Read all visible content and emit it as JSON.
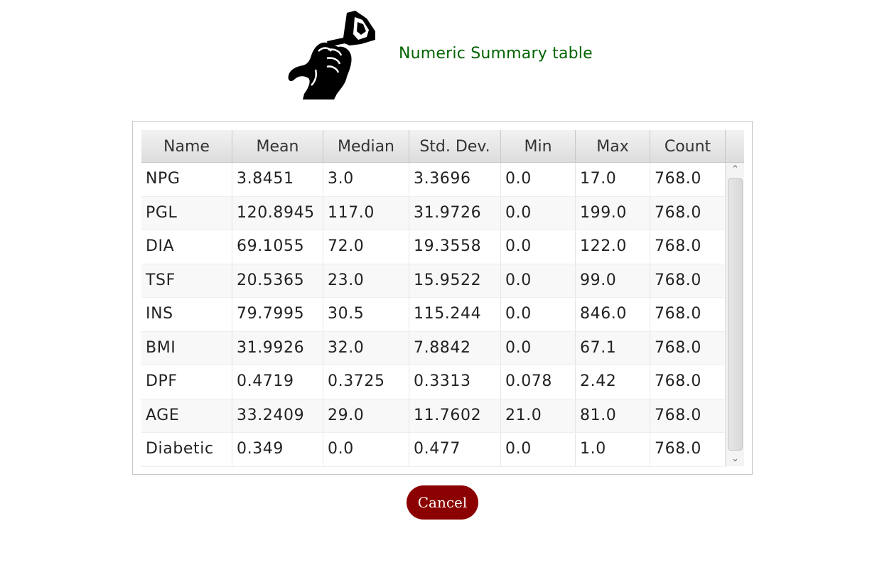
{
  "header": {
    "title": "Numeric Summary table",
    "logo_icon": "hand-holding-glucose-meter-icon"
  },
  "table": {
    "columns": [
      "Name",
      "Mean",
      "Median",
      "Std. Dev.",
      "Min",
      "Max",
      "Count"
    ],
    "rows": [
      [
        "NPG",
        "3.8451",
        "3.0",
        "3.3696",
        "0.0",
        "17.0",
        "768.0"
      ],
      [
        "PGL",
        "120.8945",
        "117.0",
        "31.9726",
        "0.0",
        "199.0",
        "768.0"
      ],
      [
        "DIA",
        "69.1055",
        "72.0",
        "19.3558",
        "0.0",
        "122.0",
        "768.0"
      ],
      [
        "TSF",
        "20.5365",
        "23.0",
        "15.9522",
        "0.0",
        "99.0",
        "768.0"
      ],
      [
        "INS",
        "79.7995",
        "30.5",
        "115.244",
        "0.0",
        "846.0",
        "768.0"
      ],
      [
        "BMI",
        "31.9926",
        "32.0",
        "7.8842",
        "0.0",
        "67.1",
        "768.0"
      ],
      [
        "DPF",
        "0.4719",
        "0.3725",
        "0.3313",
        "0.078",
        "2.42",
        "768.0"
      ],
      [
        "AGE",
        "33.2409",
        "29.0",
        "11.7602",
        "21.0",
        "81.0",
        "768.0"
      ],
      [
        "Diabetic",
        "0.349",
        "0.0",
        "0.477",
        "0.0",
        "1.0",
        "768.0"
      ]
    ]
  },
  "scrollbar": {
    "up_icon": "chevron-up-icon",
    "down_icon": "chevron-down-icon"
  },
  "actions": {
    "cancel_label": "Cancel"
  },
  "colors": {
    "title": "#006400",
    "cancel_button": "#8b0000"
  }
}
